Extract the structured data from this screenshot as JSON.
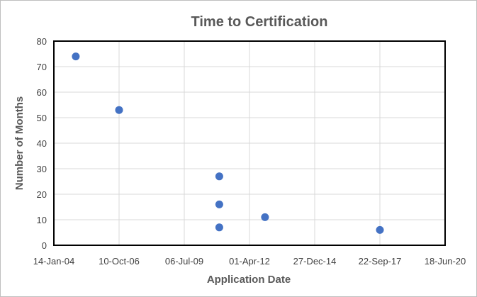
{
  "chart_data": {
    "type": "scatter",
    "title": "Time to Certification",
    "xlabel": "Application Date",
    "ylabel": "Number of Months",
    "x_ticks": [
      "14-Jan-04",
      "10-Oct-06",
      "06-Jul-09",
      "01-Apr-12",
      "27-Dec-14",
      "22-Sep-17",
      "18-Jun-20"
    ],
    "y_ticks": [
      0,
      10,
      20,
      30,
      40,
      50,
      60,
      70,
      80
    ],
    "xlim": [
      "14-Jan-04",
      "18-Jun-20"
    ],
    "ylim": [
      0,
      80
    ],
    "grid": true,
    "marker_color": "#4472c4",
    "points": [
      {
        "x": "2004-12-15",
        "y": 74
      },
      {
        "x": "2006-10-10",
        "y": 53
      },
      {
        "x": "2010-12-25",
        "y": 27
      },
      {
        "x": "2010-12-25",
        "y": 16
      },
      {
        "x": "2010-12-25",
        "y": 7
      },
      {
        "x": "2012-11-25",
        "y": 11
      },
      {
        "x": "2017-09-22",
        "y": 6
      }
    ]
  }
}
